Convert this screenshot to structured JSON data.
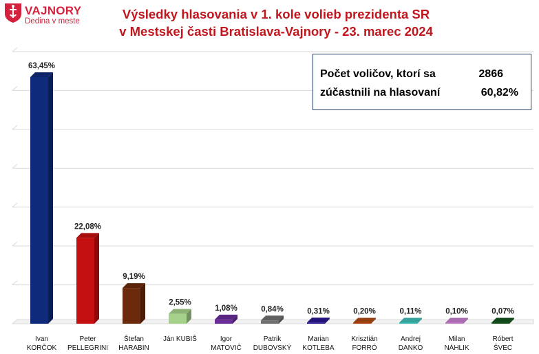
{
  "logo": {
    "name": "VAJNORY",
    "subtitle": "Dedina v meste"
  },
  "header": {
    "title_line1": "Výsledky hlasovania v 1. kole volieb prezidenta SR",
    "title_line2": "v Mestskej časti Bratislava-Vajnory - 23. marec 2024"
  },
  "info": {
    "row1_label": "Počet voličov, ktorí sa",
    "row1_value": "2866",
    "row2_label": "zúčastnili na hlasovaní",
    "row2_value": "60,82%"
  },
  "chart_data": {
    "type": "bar",
    "title": "Výsledky hlasovania v 1. kole volieb prezidenta SR v Mestskej časti Bratislava-Vajnory - 23. marec 2024",
    "categories": [
      [
        "Ivan",
        "KORČOK"
      ],
      [
        "Peter",
        "PELLEGRINI"
      ],
      [
        "Štefan",
        "HARABIN"
      ],
      [
        "Ján KUBIŠ"
      ],
      [
        "Igor",
        "MATOVIČ"
      ],
      [
        "Patrik",
        "DUBOVSKÝ"
      ],
      [
        "Marian",
        "KOTLEBA"
      ],
      [
        "Krisztián",
        "FORRÓ"
      ],
      [
        "Andrej",
        "DANKO"
      ],
      [
        "Milan",
        "NÁHLIK"
      ],
      [
        "Róbert",
        "ŠVEC"
      ]
    ],
    "values": [
      63.45,
      22.08,
      9.19,
      2.55,
      1.08,
      0.84,
      0.31,
      0.2,
      0.11,
      0.1,
      0.07
    ],
    "value_labels": [
      "63,45%",
      "22,08%",
      "9,19%",
      "2,55%",
      "1,08%",
      "0,84%",
      "0,31%",
      "0,20%",
      "0,11%",
      "0,10%",
      "0,07%"
    ],
    "colors": [
      "#0f2a7a",
      "#c41010",
      "#6b2a0c",
      "#a6d18a",
      "#6a2d9a",
      "#707070",
      "#2a1590",
      "#b04a12",
      "#3fbfb8",
      "#c77fd0",
      "#16561e"
    ],
    "ylim": [
      0,
      70
    ],
    "grid": true,
    "legend": "none"
  }
}
